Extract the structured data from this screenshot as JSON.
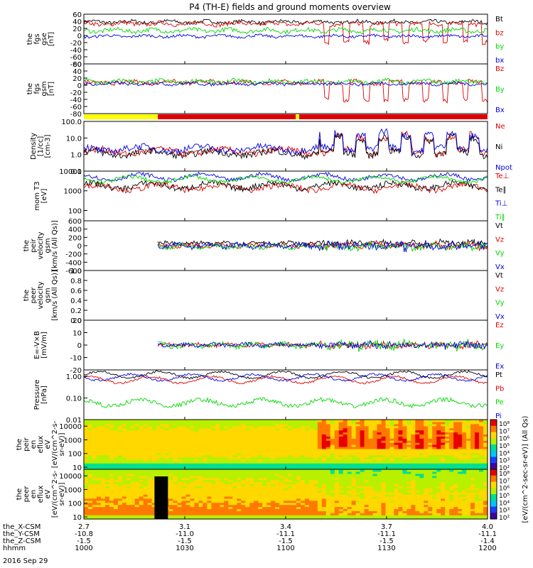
{
  "title": "P4 (TH-E) fields and ground moments overview",
  "date_label": "2016 Sep 29",
  "colors": {
    "black": "#000000",
    "red": "#e00000",
    "green": "#00d800",
    "blue": "#0000e0",
    "yellow": "#ffff00",
    "bar_red": "#e00000"
  },
  "footer": {
    "row_labels": [
      "the_X-CSM",
      "the_Y-CSM",
      "the_Z-CSM",
      "hhmm"
    ],
    "columns": [
      {
        "vals": [
          "2.7",
          "-10.8",
          "-1.5",
          "1000"
        ]
      },
      {
        "vals": [
          "3.1",
          "-11.0",
          "-1.5",
          "1030"
        ]
      },
      {
        "vals": [
          "3.4",
          "-11.1",
          "-1.5",
          "1100"
        ]
      },
      {
        "vals": [
          "3.7",
          "-11.1",
          "-1.5",
          "1130"
        ]
      },
      {
        "vals": [
          "4.0",
          "-11.1",
          "-1.4",
          "1200"
        ]
      }
    ]
  },
  "mode_bar": {
    "segments": [
      {
        "from": 1000,
        "to": 1022,
        "color": "yellow"
      },
      {
        "from": 1022,
        "to": 1103,
        "color": "bar_red"
      },
      {
        "from": 1103,
        "to": 1104,
        "color": "yellow"
      },
      {
        "from": 1104,
        "to": 1200,
        "color": "bar_red"
      }
    ]
  },
  "colorbar": {
    "label": "[eV/(cm^2-sec-sr-eV)] (All Qs)",
    "ticks": [
      "10⁸",
      "10⁷",
      "10⁶",
      "10⁵",
      "10⁴",
      "10³",
      "10²"
    ]
  },
  "chart_data": [
    {
      "name": "fgs-gse",
      "type": "line",
      "ylabel": [
        "the",
        "fgs",
        "gse",
        "[nT]"
      ],
      "ylim": [
        -80,
        60
      ],
      "yticks": [
        "60",
        "40",
        "20",
        "0",
        "-20",
        "-40",
        "-60",
        "-80"
      ],
      "ytick_values": [
        60,
        40,
        20,
        0,
        -20,
        -40,
        -60,
        -80
      ],
      "series": [
        {
          "name": "Bt",
          "color": "black",
          "base": 38,
          "amp": 5,
          "dips": false
        },
        {
          "name": "bz",
          "color": "red",
          "base": 33,
          "amp": 6,
          "dips": true
        },
        {
          "name": "by",
          "color": "green",
          "base": 14,
          "amp": 6,
          "dips": false
        },
        {
          "name": "bx",
          "color": "blue",
          "base": -2,
          "amp": 4,
          "dips": false
        }
      ]
    },
    {
      "name": "fgs-gsm",
      "type": "line",
      "ylabel": [
        "the",
        "fgs",
        "gsm",
        "[nT]"
      ],
      "ylim": [
        -80,
        60
      ],
      "yticks": [
        "60",
        "40",
        "20",
        "0",
        "-20",
        "-40",
        "-60",
        "-80"
      ],
      "ytick_values": [
        60,
        40,
        20,
        0,
        -20,
        -40,
        -60,
        -80
      ],
      "series": [
        {
          "name": "Bz",
          "color": "red",
          "base": 8,
          "amp": 6,
          "dips": true
        },
        {
          "name": "By",
          "color": "green",
          "base": 10,
          "amp": 6,
          "dips": false
        },
        {
          "name": "Bx",
          "color": "blue",
          "base": 4,
          "amp": 4,
          "dips": false
        }
      ]
    },
    {
      "name": "density",
      "type": "line",
      "log": true,
      "ylabel": [
        "Density",
        "[1/cc]",
        "[cm-3]"
      ],
      "ylim": [
        0.1,
        100
      ],
      "yticks": [
        "100.0",
        "10.0",
        "1.0",
        "0.1"
      ],
      "ytick_values": [
        100,
        10,
        1,
        0.1
      ],
      "series": [
        {
          "name": "Ne",
          "color": "red",
          "base": 1.5,
          "amp": 0.2,
          "dips": false
        },
        {
          "name": "Ni",
          "color": "black",
          "base": 1.2,
          "amp": 0.2,
          "dips": false
        },
        {
          "name": "Npot",
          "color": "blue",
          "base": 2.2,
          "amp": 0.2,
          "dips": false
        }
      ]
    },
    {
      "name": "mom-temp",
      "type": "line",
      "log": true,
      "ylabel": [
        "mom T3",
        "[eV]"
      ],
      "ylim": [
        30,
        10000
      ],
      "yticks": [
        "10000",
        "1000",
        "100"
      ],
      "ytick_values": [
        10000,
        1000,
        100
      ],
      "series": [
        {
          "name": "Te⊥",
          "color": "red",
          "base": 1500,
          "amp": 0.15,
          "dips": false
        },
        {
          "name": "Te∥",
          "color": "black",
          "base": 1800,
          "amp": 0.15,
          "dips": false
        },
        {
          "name": "Ti⊥",
          "color": "blue",
          "base": 5000,
          "amp": 0.1,
          "dips": false
        },
        {
          "name": "Ti∥",
          "color": "green",
          "base": 3800,
          "amp": 0.1,
          "dips": false
        }
      ]
    },
    {
      "name": "peir-velocity",
      "type": "line",
      "ylabel": [
        "the",
        "peir",
        "velocity",
        "gsm",
        "[km/s (All Qs)]"
      ],
      "ylim": [
        -600,
        600
      ],
      "yticks": [
        "600",
        "400",
        "200",
        "0",
        "-200",
        "-400",
        "-600"
      ],
      "ytick_values": [
        600,
        400,
        200,
        0,
        -200,
        -400,
        -600
      ],
      "start": 1022,
      "series": [
        {
          "name": "Vt",
          "color": "black",
          "base": 60,
          "amp": 40,
          "dips": false
        },
        {
          "name": "Vz",
          "color": "red",
          "base": 0,
          "amp": 50,
          "dips": false
        },
        {
          "name": "Vy",
          "color": "green",
          "base": -20,
          "amp": 50,
          "dips": false
        },
        {
          "name": "Vx",
          "color": "blue",
          "base": 0,
          "amp": 60,
          "dips": false
        }
      ]
    },
    {
      "name": "peer-velocity",
      "type": "line",
      "ylabel": [
        "the",
        "peer",
        "velocity",
        "gsm",
        "[km/s (All Qs)]"
      ],
      "ylim": [
        0,
        1
      ],
      "yticks": [
        "1.0",
        "0.8",
        "0.6",
        "0.4",
        "0.2",
        "0.0"
      ],
      "ytick_values": [
        1,
        0.8,
        0.6,
        0.4,
        0.2,
        0
      ],
      "series": [
        {
          "name": "Vt",
          "color": "black",
          "empty": true
        },
        {
          "name": "Vz",
          "color": "red",
          "empty": true
        },
        {
          "name": "Vy",
          "color": "green",
          "empty": true
        },
        {
          "name": "Vx",
          "color": "blue",
          "empty": true
        }
      ]
    },
    {
      "name": "e-field",
      "type": "line",
      "ylabel": [
        "E=-V×B",
        "[mV/m]"
      ],
      "ylim": [
        -20,
        20
      ],
      "yticks": [
        "20",
        "10",
        "0",
        "-10",
        "-20"
      ],
      "ytick_values": [
        20,
        10,
        0,
        -10,
        -20
      ],
      "start": 1022,
      "series": [
        {
          "name": "Ez",
          "color": "red",
          "base": 0,
          "amp": 1.5,
          "dips": false
        },
        {
          "name": "Ey",
          "color": "green",
          "base": 0,
          "amp": 2,
          "dips": false
        },
        {
          "name": "Ex",
          "color": "blue",
          "base": 0,
          "amp": 1.5,
          "dips": false
        }
      ]
    },
    {
      "name": "pressure",
      "type": "line",
      "log": true,
      "ylabel": [
        "Pressure",
        "[nPa]"
      ],
      "ylim": [
        0.01,
        2
      ],
      "yticks": [
        "1.00",
        "0.10",
        "0.01"
      ],
      "ytick_values": [
        1,
        0.1,
        0.01
      ],
      "series": [
        {
          "name": "Pt",
          "color": "black",
          "base": 1.2,
          "amp": 0.05,
          "dips": false
        },
        {
          "name": "Pb",
          "color": "red",
          "base": 0.7,
          "amp": 0.05,
          "dips": false
        },
        {
          "name": "Pe",
          "color": "green",
          "base": 0.06,
          "amp": 0.1,
          "dips": false
        },
        {
          "name": "Pi",
          "color": "blue",
          "base": 0.9,
          "amp": 0.05,
          "dips": false
        }
      ]
    },
    {
      "name": "peir-eflux",
      "type": "heatmap",
      "log": true,
      "ylabel": [
        "the",
        "peir",
        "en",
        "eflux",
        "eV",
        "[eV/(cm^2-s-",
        "sr-eV)]"
      ],
      "ylim": [
        7,
        30000
      ],
      "yticks": [
        "10000",
        "1000",
        "100",
        "10"
      ],
      "ytick_values": [
        10000,
        1000,
        100,
        10
      ]
    },
    {
      "name": "peer-eflux",
      "type": "heatmap",
      "log": true,
      "ylabel": [
        "the",
        "peer",
        "en",
        "eflux",
        "eV",
        "[eV/(cm^2-s-",
        "sr-eV)]"
      ],
      "ylim": [
        7,
        30000
      ],
      "yticks": [
        "10000",
        "1000",
        "100",
        "10"
      ],
      "ytick_values": [
        10000,
        1000,
        100,
        10
      ]
    }
  ]
}
